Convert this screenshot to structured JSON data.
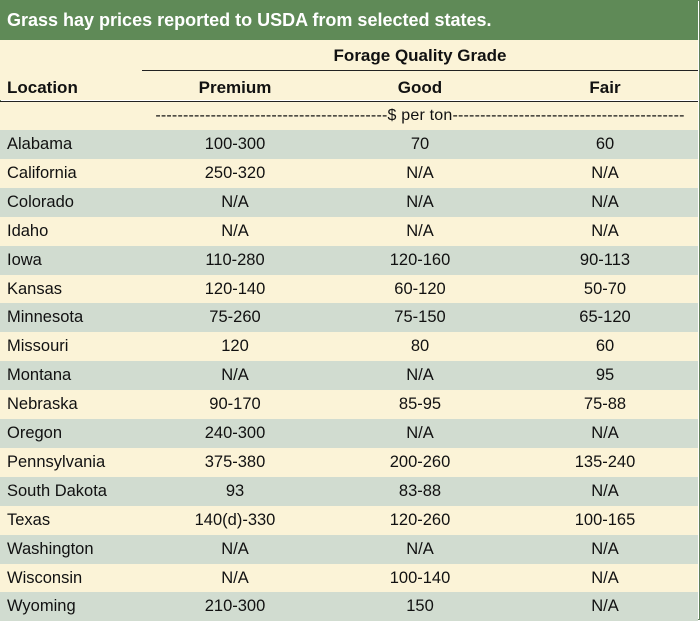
{
  "title": "Grass hay prices reported to USDA from selected states.",
  "header": {
    "group_label": "Forage Quality Grade",
    "location": "Location",
    "premium": "Premium",
    "good": "Good",
    "fair": "Fair"
  },
  "units": "------------------------------------------$ per ton------------------------------------------",
  "rows": [
    {
      "location": "Alabama",
      "premium": "100-300",
      "good": "70",
      "fair": "60"
    },
    {
      "location": "California",
      "premium": "250-320",
      "good": "N/A",
      "fair": "N/A"
    },
    {
      "location": "Colorado",
      "premium": "N/A",
      "good": "N/A",
      "fair": "N/A"
    },
    {
      "location": "Idaho",
      "premium": "N/A",
      "good": "N/A",
      "fair": "N/A"
    },
    {
      "location": "Iowa",
      "premium": "110-280",
      "good": "120-160",
      "fair": "90-113"
    },
    {
      "location": "Kansas",
      "premium": "120-140",
      "good": "60-120",
      "fair": "50-70"
    },
    {
      "location": "Minnesota",
      "premium": "75-260",
      "good": "75-150",
      "fair": "65-120"
    },
    {
      "location": "Missouri",
      "premium": "120",
      "good": "80",
      "fair": "60"
    },
    {
      "location": "Montana",
      "premium": "N/A",
      "good": "N/A",
      "fair": "95"
    },
    {
      "location": "Nebraska",
      "premium": "90-170",
      "good": "85-95",
      "fair": "75-88"
    },
    {
      "location": "Oregon",
      "premium": "240-300",
      "good": "N/A",
      "fair": "N/A"
    },
    {
      "location": "Pennsylvania",
      "premium": "375-380",
      "good": "200-260",
      "fair": "135-240"
    },
    {
      "location": "South Dakota",
      "premium": "93",
      "good": "83-88",
      "fair": "N/A"
    },
    {
      "location": "Texas",
      "premium": "140(d)-330",
      "good": "120-260",
      "fair": "100-165"
    },
    {
      "location": "Washington",
      "premium": "N/A",
      "good": "N/A",
      "fair": "N/A"
    },
    {
      "location": "Wisconsin",
      "premium": "N/A",
      "good": "100-140",
      "fair": "N/A"
    },
    {
      "location": "Wyoming",
      "premium": "210-300",
      "good": "150",
      "fair": "N/A"
    }
  ],
  "colors": {
    "title_bg": "#5f8a57",
    "row_green": "#d1dcd0",
    "row_cream": "#fbf3d7"
  }
}
